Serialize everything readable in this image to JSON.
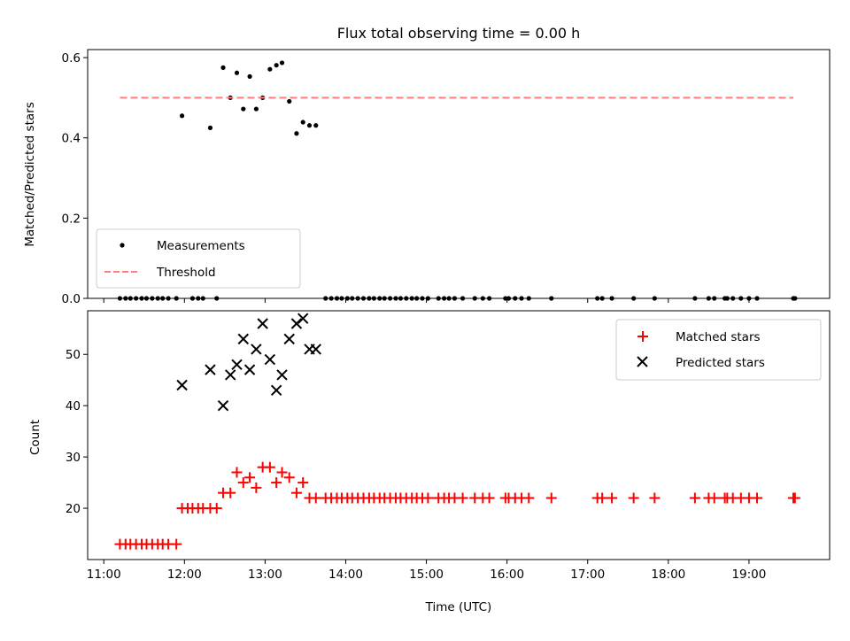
{
  "chart_data": [
    {
      "type": "scatter",
      "title": "Flux total observing time = 0.00 h",
      "xlabel": "",
      "ylabel": "Matched/Predicted stars",
      "x_unit": "hour (UTC)",
      "xlim": [
        10.8,
        20.0
      ],
      "ylim": [
        0.0,
        0.62
      ],
      "xticks": [
        11,
        12,
        13,
        14,
        15,
        16,
        17,
        18,
        19
      ],
      "yticks": [
        0.0,
        0.2,
        0.4,
        0.6
      ],
      "ytick_labels": [
        "0.0",
        "0.2",
        "0.4",
        "0.6"
      ],
      "legend_position": "lower-left",
      "series": [
        {
          "name": "Measurements",
          "marker": "dot",
          "color": "#000000",
          "points": [
            [
              11.2,
              0
            ],
            [
              11.27,
              0
            ],
            [
              11.33,
              0
            ],
            [
              11.4,
              0
            ],
            [
              11.47,
              0
            ],
            [
              11.53,
              0
            ],
            [
              11.6,
              0
            ],
            [
              11.67,
              0
            ],
            [
              11.73,
              0
            ],
            [
              11.8,
              0
            ],
            [
              11.9,
              0
            ],
            [
              11.97,
              0.455
            ],
            [
              12.1,
              0
            ],
            [
              12.17,
              0
            ],
            [
              12.23,
              0
            ],
            [
              12.32,
              0.425
            ],
            [
              12.4,
              0
            ],
            [
              12.48,
              0.575
            ],
            [
              12.57,
              0.5
            ],
            [
              12.65,
              0.562
            ],
            [
              12.73,
              0.472
            ],
            [
              12.81,
              0.553
            ],
            [
              12.89,
              0.472
            ],
            [
              12.97,
              0.5
            ],
            [
              13.06,
              0.571
            ],
            [
              13.14,
              0.581
            ],
            [
              13.21,
              0.587
            ],
            [
              13.3,
              0.491
            ],
            [
              13.39,
              0.411
            ],
            [
              13.47,
              0.439
            ],
            [
              13.55,
              0.431
            ],
            [
              13.63,
              0.431
            ],
            [
              13.75,
              0
            ],
            [
              13.82,
              0
            ],
            [
              13.89,
              0
            ],
            [
              13.95,
              0
            ],
            [
              14.02,
              0
            ],
            [
              14.08,
              0
            ],
            [
              14.15,
              0
            ],
            [
              14.22,
              0
            ],
            [
              14.29,
              0
            ],
            [
              14.35,
              0
            ],
            [
              14.42,
              0
            ],
            [
              14.48,
              0
            ],
            [
              14.55,
              0
            ],
            [
              14.62,
              0
            ],
            [
              14.68,
              0
            ],
            [
              14.75,
              0
            ],
            [
              14.82,
              0
            ],
            [
              14.88,
              0
            ],
            [
              14.95,
              0
            ],
            [
              15.02,
              0
            ],
            [
              15.15,
              0
            ],
            [
              15.22,
              0
            ],
            [
              15.28,
              0
            ],
            [
              15.35,
              0
            ],
            [
              15.45,
              0
            ],
            [
              15.6,
              0
            ],
            [
              15.7,
              0
            ],
            [
              15.78,
              0
            ],
            [
              15.98,
              0
            ],
            [
              16.02,
              0
            ],
            [
              16.1,
              0
            ],
            [
              16.18,
              0
            ],
            [
              16.27,
              0
            ],
            [
              16.55,
              0
            ],
            [
              17.12,
              0
            ],
            [
              17.18,
              0
            ],
            [
              17.3,
              0
            ],
            [
              17.57,
              0
            ],
            [
              17.83,
              0
            ],
            [
              18.33,
              0
            ],
            [
              18.5,
              0
            ],
            [
              18.57,
              0
            ],
            [
              18.7,
              0
            ],
            [
              18.73,
              0
            ],
            [
              18.8,
              0
            ],
            [
              18.9,
              0
            ],
            [
              19.0,
              0
            ],
            [
              19.1,
              0
            ],
            [
              19.55,
              0
            ],
            [
              19.57,
              0
            ]
          ]
        },
        {
          "name": "Threshold",
          "style": "dashed",
          "color": "#ff7f7f",
          "x": [
            11.2,
            19.55
          ],
          "y": [
            0.5,
            0.5
          ]
        }
      ]
    },
    {
      "type": "scatter",
      "title": "",
      "xlabel": "Time (UTC)",
      "ylabel": "Count",
      "x_unit": "hour (UTC)",
      "xlim": [
        10.8,
        20.0
      ],
      "ylim": [
        10.0,
        58.5
      ],
      "xticks": [
        11,
        12,
        13,
        14,
        15,
        16,
        17,
        18,
        19
      ],
      "xtick_labels": [
        "11:00",
        "12:00",
        "13:00",
        "14:00",
        "15:00",
        "16:00",
        "17:00",
        "18:00",
        "19:00"
      ],
      "yticks": [
        20,
        30,
        40,
        50
      ],
      "ytick_labels": [
        "20",
        "30",
        "40",
        "50"
      ],
      "legend_position": "upper-right",
      "series": [
        {
          "name": "Matched stars",
          "marker": "plus",
          "color": "#ff0000",
          "points": [
            [
              11.2,
              13
            ],
            [
              11.27,
              13
            ],
            [
              11.33,
              13
            ],
            [
              11.4,
              13
            ],
            [
              11.47,
              13
            ],
            [
              11.53,
              13
            ],
            [
              11.6,
              13
            ],
            [
              11.67,
              13
            ],
            [
              11.73,
              13
            ],
            [
              11.8,
              13
            ],
            [
              11.9,
              13
            ],
            [
              11.97,
              20
            ],
            [
              12.04,
              20
            ],
            [
              12.1,
              20
            ],
            [
              12.17,
              20
            ],
            [
              12.23,
              20
            ],
            [
              12.32,
              20
            ],
            [
              12.4,
              20
            ],
            [
              12.48,
              23
            ],
            [
              12.57,
              23
            ],
            [
              12.65,
              27
            ],
            [
              12.73,
              25
            ],
            [
              12.81,
              26
            ],
            [
              12.89,
              24
            ],
            [
              12.97,
              28
            ],
            [
              13.06,
              28
            ],
            [
              13.14,
              25
            ],
            [
              13.21,
              27
            ],
            [
              13.3,
              26
            ],
            [
              13.39,
              23
            ],
            [
              13.47,
              25
            ],
            [
              13.55,
              22
            ],
            [
              13.63,
              22
            ],
            [
              13.75,
              22
            ],
            [
              13.82,
              22
            ],
            [
              13.89,
              22
            ],
            [
              13.95,
              22
            ],
            [
              14.02,
              22
            ],
            [
              14.08,
              22
            ],
            [
              14.15,
              22
            ],
            [
              14.22,
              22
            ],
            [
              14.29,
              22
            ],
            [
              14.35,
              22
            ],
            [
              14.42,
              22
            ],
            [
              14.48,
              22
            ],
            [
              14.55,
              22
            ],
            [
              14.62,
              22
            ],
            [
              14.68,
              22
            ],
            [
              14.75,
              22
            ],
            [
              14.82,
              22
            ],
            [
              14.88,
              22
            ],
            [
              14.95,
              22
            ],
            [
              15.02,
              22
            ],
            [
              15.15,
              22
            ],
            [
              15.22,
              22
            ],
            [
              15.28,
              22
            ],
            [
              15.35,
              22
            ],
            [
              15.45,
              22
            ],
            [
              15.6,
              22
            ],
            [
              15.7,
              22
            ],
            [
              15.78,
              22
            ],
            [
              15.98,
              22
            ],
            [
              16.02,
              22
            ],
            [
              16.1,
              22
            ],
            [
              16.18,
              22
            ],
            [
              16.27,
              22
            ],
            [
              16.55,
              22
            ],
            [
              17.12,
              22
            ],
            [
              17.18,
              22
            ],
            [
              17.3,
              22
            ],
            [
              17.57,
              22
            ],
            [
              17.83,
              22
            ],
            [
              18.33,
              22
            ],
            [
              18.5,
              22
            ],
            [
              18.57,
              22
            ],
            [
              18.7,
              22
            ],
            [
              18.73,
              22
            ],
            [
              18.8,
              22
            ],
            [
              18.9,
              22
            ],
            [
              19.0,
              22
            ],
            [
              19.1,
              22
            ],
            [
              19.55,
              22
            ],
            [
              19.57,
              22
            ]
          ]
        },
        {
          "name": "Predicted stars",
          "marker": "x",
          "color": "#000000",
          "points": [
            [
              11.97,
              44
            ],
            [
              12.32,
              47
            ],
            [
              12.48,
              40
            ],
            [
              12.57,
              46
            ],
            [
              12.65,
              48
            ],
            [
              12.73,
              53
            ],
            [
              12.81,
              47
            ],
            [
              12.89,
              51
            ],
            [
              12.97,
              56
            ],
            [
              13.06,
              49
            ],
            [
              13.14,
              43
            ],
            [
              13.21,
              46
            ],
            [
              13.3,
              53
            ],
            [
              13.39,
              56
            ],
            [
              13.47,
              57
            ],
            [
              13.55,
              51
            ],
            [
              13.63,
              51
            ]
          ]
        }
      ]
    }
  ]
}
